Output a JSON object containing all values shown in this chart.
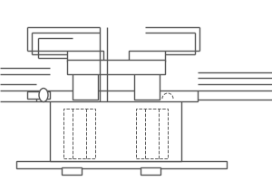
{
  "bg_color": "#ffffff",
  "line_color": "#555555",
  "lw": 1.0,
  "lw_thin": 0.7,
  "lw_dash": 0.7
}
